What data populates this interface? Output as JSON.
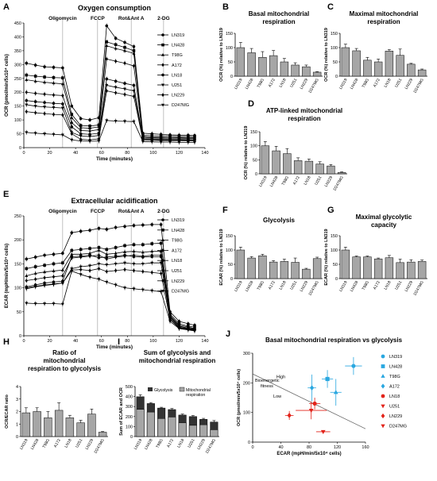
{
  "figure": {
    "panel_letters": [
      "A",
      "B",
      "C",
      "D",
      "E",
      "F",
      "G",
      "H",
      "I",
      "J"
    ]
  },
  "chart_data": [
    {
      "id": "A",
      "type": "line",
      "title": "Oxygen consumption",
      "xlabel": "Time (minutes)",
      "ylabel": "OCR (pmol/min/5x10⁴ cells)",
      "xlim": [
        0,
        140
      ],
      "ylim": [
        0,
        450
      ],
      "xticks": [
        0,
        20,
        40,
        60,
        80,
        100,
        120,
        140
      ],
      "yticks": [
        0,
        50,
        100,
        150,
        200,
        250,
        300,
        350,
        400,
        450
      ],
      "injections": [
        {
          "label": "Oligomycin",
          "x": 30
        },
        {
          "label": "FCCP",
          "x": 57
        },
        {
          "label": "Rot&Ant A",
          "x": 83
        },
        {
          "label": "2-DG",
          "x": 108
        }
      ],
      "x": [
        2,
        9,
        16,
        23,
        30,
        37,
        44,
        51,
        58,
        64,
        71,
        78,
        85,
        92,
        99,
        106,
        113,
        120,
        127,
        132
      ],
      "legend": "right",
      "series": [
        {
          "name": "LN319",
          "marker": "circle",
          "values": [
            305,
            298,
            292,
            290,
            288,
            150,
            105,
            100,
            108,
            440,
            395,
            380,
            365,
            52,
            50,
            48,
            46,
            45,
            45,
            44
          ]
        },
        {
          "name": "LN428",
          "marker": "square",
          "values": [
            262,
            258,
            255,
            253,
            252,
            120,
            80,
            78,
            82,
            382,
            372,
            362,
            350,
            45,
            43,
            42,
            41,
            40,
            40,
            39
          ]
        },
        {
          "name": "T98G",
          "marker": "triangle",
          "values": [
            245,
            240,
            236,
            233,
            230,
            108,
            72,
            70,
            75,
            368,
            358,
            350,
            340,
            40,
            38,
            37,
            36,
            36,
            35,
            35
          ]
        },
        {
          "name": "A172",
          "marker": "diamond",
          "values": [
            200,
            196,
            193,
            190,
            188,
            90,
            62,
            60,
            65,
            320,
            312,
            305,
            295,
            38,
            36,
            35,
            34,
            34,
            33,
            33
          ]
        },
        {
          "name": "LN18",
          "marker": "circle",
          "values": [
            170,
            166,
            163,
            160,
            158,
            75,
            50,
            48,
            52,
            248,
            240,
            232,
            225,
            33,
            32,
            31,
            30,
            30,
            29,
            29
          ]
        },
        {
          "name": "U251",
          "marker": "triangle-down",
          "values": [
            155,
            150,
            147,
            145,
            143,
            55,
            42,
            40,
            44,
            225,
            218,
            212,
            205,
            30,
            29,
            28,
            27,
            27,
            27,
            26
          ]
        },
        {
          "name": "LN229",
          "marker": "diamond",
          "values": [
            130,
            126,
            123,
            120,
            118,
            50,
            30,
            28,
            32,
            205,
            198,
            192,
            185,
            28,
            27,
            26,
            25,
            25,
            24,
            24
          ]
        },
        {
          "name": "D247MG",
          "marker": "triangle-down",
          "values": [
            55,
            52,
            50,
            48,
            46,
            28,
            24,
            23,
            24,
            98,
            96,
            95,
            94,
            22,
            21,
            20,
            20,
            19,
            19,
            19
          ]
        }
      ]
    },
    {
      "id": "B",
      "type": "bar",
      "title": "Basal mitochondrial respiration",
      "ylabel": "OCR (%) relative to LN319",
      "ylim": [
        0,
        150
      ],
      "yticks": [
        0,
        50,
        100,
        150
      ],
      "categories": [
        "LN319",
        "LN428",
        "T98G",
        "A172",
        "LN18",
        "U251",
        "LN229",
        "D247MG"
      ],
      "values": [
        100,
        82,
        66,
        72,
        50,
        39,
        33,
        14
      ],
      "errors": [
        18,
        15,
        20,
        18,
        12,
        8,
        6,
        2
      ]
    },
    {
      "id": "C",
      "type": "bar",
      "title": "Maximal mitochondrial respiration",
      "ylabel": "OCR (%) relative to LN319",
      "ylim": [
        0,
        150
      ],
      "yticks": [
        0,
        50,
        100,
        150
      ],
      "categories": [
        "LN319",
        "LN428",
        "T98G",
        "A172",
        "LN18",
        "U251",
        "LN229",
        "D247MG"
      ],
      "values": [
        100,
        89,
        56,
        50,
        88,
        73,
        42,
        22
      ],
      "errors": [
        12,
        8,
        10,
        10,
        5,
        22,
        3,
        3
      ]
    },
    {
      "id": "D",
      "type": "bar",
      "title": "ATP-linked mitochondrial respiration",
      "ylabel": "OCR (%) relative to LN319",
      "ylim": [
        0,
        150
      ],
      "yticks": [
        0,
        50,
        100,
        150
      ],
      "categories": [
        "LN319",
        "LN428",
        "T98G",
        "A172",
        "LN18",
        "U251",
        "LN229",
        "D247MG"
      ],
      "values": [
        100,
        82,
        72,
        47,
        45,
        35,
        28,
        5
      ],
      "errors": [
        15,
        16,
        18,
        10,
        8,
        8,
        5,
        2
      ]
    },
    {
      "id": "E",
      "type": "line",
      "title": "Extracellular acidification",
      "xlabel": "Time (minutes)",
      "ylabel": "ECAR (mpH/min/5x10⁴ cells)",
      "xlim": [
        0,
        140
      ],
      "ylim": [
        0,
        250
      ],
      "xticks": [
        0,
        20,
        40,
        60,
        80,
        100,
        120,
        140
      ],
      "yticks": [
        0,
        50,
        100,
        150,
        200,
        250
      ],
      "injections": [
        {
          "label": "Oligomycin",
          "x": 30
        },
        {
          "label": "FCCP",
          "x": 57
        },
        {
          "label": "Rot&Ant A",
          "x": 83
        },
        {
          "label": "2-DG",
          "x": 108
        }
      ],
      "x": [
        2,
        9,
        16,
        23,
        30,
        37,
        44,
        51,
        58,
        64,
        71,
        78,
        85,
        92,
        99,
        106,
        113,
        120,
        127,
        132
      ],
      "legend": "right",
      "series": [
        {
          "name": "LN319",
          "marker": "circle",
          "values": [
            160,
            164,
            168,
            170,
            172,
            215,
            218,
            220,
            224,
            222,
            226,
            228,
            230,
            231,
            232,
            232,
            50,
            30,
            25,
            22
          ]
        },
        {
          "name": "LN428",
          "marker": "square",
          "values": [
            140,
            144,
            147,
            150,
            152,
            178,
            180,
            182,
            184,
            180,
            184,
            188,
            190,
            190,
            192,
            193,
            45,
            25,
            20,
            18
          ]
        },
        {
          "name": "T98G",
          "marker": "triangle",
          "values": [
            125,
            130,
            133,
            135,
            137,
            170,
            170,
            172,
            178,
            170,
            172,
            175,
            176,
            174,
            176,
            176,
            42,
            22,
            18,
            15
          ]
        },
        {
          "name": "A172",
          "marker": "diamond",
          "values": [
            115,
            118,
            121,
            123,
            125,
            162,
            164,
            166,
            168,
            160,
            164,
            166,
            168,
            166,
            168,
            168,
            40,
            20,
            16,
            14
          ]
        },
        {
          "name": "LN18",
          "marker": "circle",
          "values": [
            102,
            106,
            110,
            112,
            114,
            165,
            166,
            168,
            163,
            164,
            166,
            168,
            165,
            164,
            165,
            165,
            38,
            18,
            15,
            13
          ]
        },
        {
          "name": "U251",
          "marker": "triangle-down",
          "values": [
            98,
            102,
            105,
            107,
            110,
            140,
            144,
            146,
            150,
            148,
            150,
            152,
            150,
            150,
            152,
            152,
            35,
            17,
            14,
            12
          ]
        },
        {
          "name": "LN229",
          "marker": "diamond",
          "values": [
            100,
            103,
            106,
            108,
            110,
            137,
            138,
            136,
            140,
            134,
            136,
            138,
            136,
            134,
            132,
            130,
            34,
            16,
            13,
            11
          ]
        },
        {
          "name": "D247MG",
          "marker": "triangle-down",
          "values": [
            68,
            67,
            67,
            67,
            66,
            135,
            128,
            122,
            118,
            112,
            106,
            100,
            98,
            96,
            94,
            92,
            30,
            15,
            12,
            10
          ]
        }
      ]
    },
    {
      "id": "F",
      "type": "bar",
      "title": "Glycolysis",
      "ylabel": "ECAR (%) relative to LN319",
      "ylim": [
        0,
        150
      ],
      "yticks": [
        0,
        50,
        100,
        150
      ],
      "categories": [
        "LN319",
        "LN428",
        "T98G",
        "A172",
        "LN18",
        "U251",
        "LN229",
        "D247MG"
      ],
      "values": [
        100,
        72,
        80,
        58,
        60,
        57,
        33,
        70
      ],
      "errors": [
        10,
        5,
        5,
        5,
        8,
        15,
        3,
        5
      ]
    },
    {
      "id": "G",
      "type": "bar",
      "title": "Maximal glycolytic capacity",
      "ylabel": "ECAR (%) relative to LN319",
      "ylim": [
        0,
        150
      ],
      "yticks": [
        0,
        50,
        100,
        150
      ],
      "categories": [
        "LN319",
        "LN428",
        "T98G",
        "A172",
        "LN18",
        "U251",
        "LN229",
        "D247MG"
      ],
      "values": [
        100,
        76,
        76,
        69,
        73,
        56,
        58,
        60
      ],
      "errors": [
        10,
        3,
        3,
        3,
        8,
        12,
        8,
        5
      ]
    },
    {
      "id": "H",
      "type": "bar",
      "title": "Ratio of mitochondrial respiration to glycolysis",
      "ylabel": "OCR/ECAR ratio",
      "ylim": [
        0,
        4
      ],
      "yticks": [
        0,
        1,
        2,
        3,
        4
      ],
      "categories": [
        "LN319",
        "LN428",
        "T98G",
        "A172",
        "LN18",
        "U251",
        "LN229",
        "D247MG"
      ],
      "values": [
        1.9,
        2.0,
        1.5,
        2.1,
        1.5,
        1.1,
        1.8,
        0.35
      ],
      "errors": [
        0.4,
        0.3,
        0.5,
        0.6,
        0.2,
        0.2,
        0.4,
        0.05
      ]
    },
    {
      "id": "I",
      "type": "bar",
      "title": "Sum of glycolysis and mitochondrial respiration",
      "ylabel": "Sum of ECAR and OCR",
      "ylim": [
        0,
        500
      ],
      "yticks": [
        0,
        100,
        200,
        300,
        400,
        500
      ],
      "categories": [
        "LN319",
        "LN428",
        "T98G",
        "A172",
        "LN18",
        "U251",
        "LN229",
        "D247MG"
      ],
      "legend_labels": [
        "Glycolysis",
        "Mitochondrial respiration"
      ],
      "totals": [
        398,
        330,
        285,
        270,
        215,
        200,
        172,
        145
      ],
      "mito": [
        272,
        245,
        180,
        195,
        138,
        112,
        118,
        68
      ],
      "errors": [
        20,
        10,
        8,
        10,
        10,
        10,
        10,
        15
      ]
    },
    {
      "id": "J",
      "type": "scatter",
      "title": "Basal mitochondrial respiration vs glycolysis",
      "xlabel": "ECAR (mpH/min/5x10⁴ cells)",
      "ylabel": "OCR (pmol/min/5x10⁴ cells)",
      "xlim": [
        0,
        160
      ],
      "ylim": [
        0,
        300
      ],
      "xticks": [
        0,
        40,
        80,
        120,
        160
      ],
      "yticks": [
        0,
        100,
        200,
        300
      ],
      "annotations": [
        "Bioenergetic fitness",
        "High",
        "Low"
      ],
      "fitness_line": [
        [
          0,
          230
        ],
        [
          160,
          45
        ]
      ],
      "legend": "right",
      "points": [
        {
          "name": "LN319",
          "marker": "circle",
          "color": "#29a7e0",
          "x": 143,
          "y": 257,
          "xerr": 12,
          "yerr": 30
        },
        {
          "name": "LN428",
          "marker": "square",
          "color": "#29a7e0",
          "x": 106,
          "y": 213,
          "xerr": 8,
          "yerr": 30
        },
        {
          "name": "T98G",
          "marker": "triangle",
          "color": "#29a7e0",
          "x": 118,
          "y": 168,
          "xerr": 8,
          "yerr": 45
        },
        {
          "name": "A172",
          "marker": "diamond",
          "color": "#29a7e0",
          "x": 84,
          "y": 183,
          "xerr": 6,
          "yerr": 45
        },
        {
          "name": "LN18",
          "marker": "circle",
          "color": "#e2231a",
          "x": 88,
          "y": 130,
          "xerr": 8,
          "yerr": 20
        },
        {
          "name": "U251",
          "marker": "triangle-down",
          "color": "#e2231a",
          "x": 83,
          "y": 107,
          "xerr": 22,
          "yerr": 30
        },
        {
          "name": "LN229",
          "marker": "diamond",
          "color": "#e2231a",
          "x": 52,
          "y": 90,
          "xerr": 6,
          "yerr": 15
        },
        {
          "name": "D247MG",
          "marker": "triangle-down",
          "color": "#e2231a",
          "x": 100,
          "y": 35,
          "xerr": 10,
          "yerr": 4
        }
      ]
    }
  ]
}
